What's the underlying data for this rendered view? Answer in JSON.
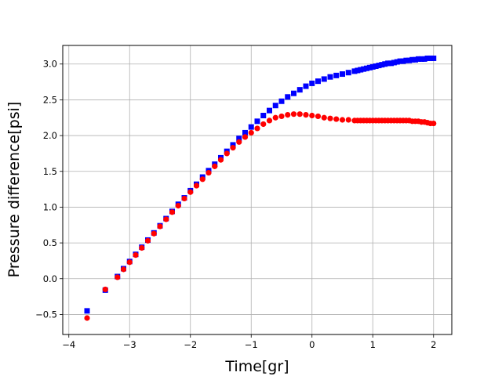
{
  "chart_data": {
    "type": "scatter",
    "title": "",
    "xlabel": "Time[gr]",
    "ylabel": "Pressure difference[psi]",
    "xlim": [
      -4.1,
      2.3
    ],
    "ylim": [
      -0.78,
      3.26
    ],
    "xticks": [
      -4,
      -3,
      -2,
      -1,
      0,
      1,
      2
    ],
    "xtick_labels": [
      "−4",
      "−3",
      "−2",
      "−1",
      "0",
      "1",
      "2"
    ],
    "yticks": [
      -0.5,
      0.0,
      0.5,
      1.0,
      1.5,
      2.0,
      2.5,
      3.0
    ],
    "ytick_labels": [
      "−0.5",
      "0.0",
      "0.5",
      "1.0",
      "1.5",
      "2.0",
      "2.5",
      "3.0"
    ],
    "grid": true,
    "legend": false,
    "series": [
      {
        "marker": "square",
        "color": "#0000ff",
        "x": [
          -3.7,
          -3.4,
          -3.2,
          -3.1,
          -3.0,
          -2.9,
          -2.8,
          -2.7,
          -2.6,
          -2.5,
          -2.4,
          -2.3,
          -2.2,
          -2.1,
          -2.0,
          -1.9,
          -1.8,
          -1.7,
          -1.6,
          -1.5,
          -1.4,
          -1.3,
          -1.2,
          -1.1,
          -1.0,
          -0.9,
          -0.8,
          -0.7,
          -0.6,
          -0.5,
          -0.4,
          -0.3,
          -0.2,
          -0.1,
          0.0,
          0.1,
          0.2,
          0.3,
          0.4,
          0.5,
          0.6,
          0.7,
          0.75,
          0.8,
          0.85,
          0.9,
          0.95,
          1.0,
          1.05,
          1.1,
          1.15,
          1.2,
          1.25,
          1.3,
          1.35,
          1.4,
          1.45,
          1.5,
          1.55,
          1.6,
          1.65,
          1.7,
          1.75,
          1.8,
          1.85,
          1.9,
          1.95,
          2.0
        ],
        "y": [
          -0.45,
          -0.16,
          0.03,
          0.14,
          0.24,
          0.34,
          0.44,
          0.54,
          0.64,
          0.74,
          0.84,
          0.94,
          1.04,
          1.13,
          1.23,
          1.32,
          1.42,
          1.51,
          1.6,
          1.69,
          1.78,
          1.87,
          1.96,
          2.04,
          2.12,
          2.2,
          2.28,
          2.35,
          2.42,
          2.48,
          2.54,
          2.59,
          2.64,
          2.69,
          2.73,
          2.76,
          2.79,
          2.82,
          2.84,
          2.86,
          2.88,
          2.9,
          2.91,
          2.92,
          2.93,
          2.94,
          2.95,
          2.96,
          2.97,
          2.98,
          2.99,
          3.0,
          3.01,
          3.01,
          3.02,
          3.03,
          3.04,
          3.04,
          3.05,
          3.05,
          3.06,
          3.06,
          3.07,
          3.07,
          3.07,
          3.08,
          3.08,
          3.08
        ]
      },
      {
        "marker": "circle",
        "color": "#ff0000",
        "x": [
          -3.7,
          -3.4,
          -3.2,
          -3.1,
          -3.0,
          -2.9,
          -2.8,
          -2.7,
          -2.6,
          -2.5,
          -2.4,
          -2.3,
          -2.2,
          -2.1,
          -2.0,
          -1.9,
          -1.8,
          -1.7,
          -1.6,
          -1.5,
          -1.4,
          -1.3,
          -1.2,
          -1.1,
          -1.0,
          -0.9,
          -0.8,
          -0.7,
          -0.6,
          -0.5,
          -0.4,
          -0.3,
          -0.2,
          -0.1,
          0.0,
          0.1,
          0.2,
          0.3,
          0.4,
          0.5,
          0.6,
          0.7,
          0.75,
          0.8,
          0.85,
          0.9,
          0.95,
          1.0,
          1.05,
          1.1,
          1.15,
          1.2,
          1.25,
          1.3,
          1.35,
          1.4,
          1.45,
          1.5,
          1.55,
          1.6,
          1.65,
          1.7,
          1.75,
          1.8,
          1.85,
          1.9,
          1.95,
          2.0
        ],
        "y": [
          -0.55,
          -0.15,
          0.02,
          0.13,
          0.23,
          0.33,
          0.43,
          0.53,
          0.63,
          0.73,
          0.83,
          0.93,
          1.02,
          1.12,
          1.21,
          1.3,
          1.39,
          1.48,
          1.57,
          1.66,
          1.75,
          1.83,
          1.91,
          1.98,
          2.04,
          2.1,
          2.16,
          2.21,
          2.25,
          2.27,
          2.29,
          2.3,
          2.3,
          2.29,
          2.28,
          2.27,
          2.25,
          2.24,
          2.23,
          2.22,
          2.22,
          2.21,
          2.21,
          2.21,
          2.21,
          2.21,
          2.21,
          2.21,
          2.21,
          2.21,
          2.21,
          2.21,
          2.21,
          2.21,
          2.21,
          2.21,
          2.21,
          2.21,
          2.21,
          2.21,
          2.2,
          2.2,
          2.2,
          2.19,
          2.19,
          2.18,
          2.17,
          2.17
        ]
      }
    ]
  }
}
